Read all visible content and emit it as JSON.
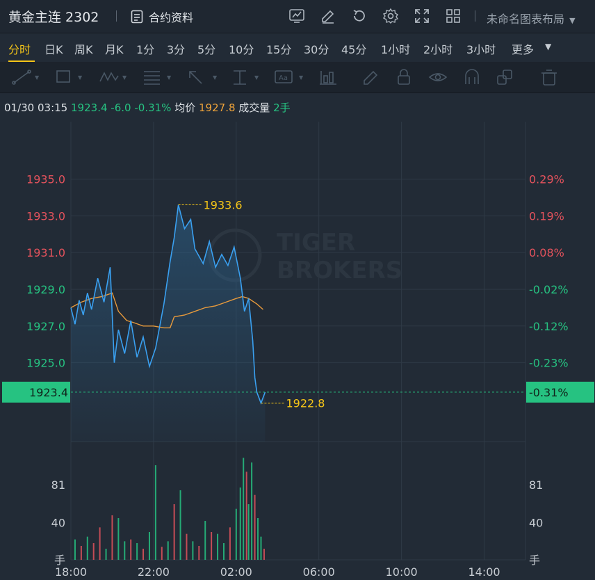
{
  "header": {
    "title": "黄金主连 2302",
    "contract_info_label": "合约资料",
    "layout_name": "未命名图表布局"
  },
  "periods": [
    "分时",
    "日K",
    "周K",
    "月K",
    "1分",
    "3分",
    "5分",
    "10分",
    "15分",
    "30分",
    "45分",
    "1小时",
    "2小时",
    "3小时",
    "更多"
  ],
  "active_period": "分时",
  "info": {
    "datetime": "01/30 03:15",
    "price": "1923.4",
    "change": "-6.0",
    "change_pct": "-0.31%",
    "avg_label": "均价",
    "avg_value": "1927.8",
    "volume_label": "成交量",
    "volume_value": "2手"
  },
  "colors": {
    "up": "#e2525c",
    "down": "#26c281",
    "price_line": "#3aa0f0",
    "avg_line": "#e89a3c",
    "annotation": "#f5c518"
  },
  "watermark": [
    "TIGER",
    "BROKERS"
  ],
  "chart_data": {
    "type": "line",
    "x_ticks": [
      "18:00",
      "22:00",
      "02:00",
      "06:00",
      "10:00",
      "14:00"
    ],
    "y_left_ticks": [
      "1935.0",
      "1933.0",
      "1931.0",
      "1929.0",
      "1927.0",
      "1925.0"
    ],
    "y_right_ticks": [
      "0.29%",
      "0.19%",
      "0.08%",
      "-0.02%",
      "-0.12%",
      "-0.23%"
    ],
    "last_price_tag": "1923.4",
    "last_pct_tag": "-0.31%",
    "ylim": [
      1922.6,
      1936.8
    ],
    "reference_close": 1929.4,
    "high_label": "1933.6",
    "low_label": "1922.8",
    "price_series": {
      "name": "price",
      "x": [
        18.0,
        18.2,
        18.4,
        18.6,
        18.8,
        19.0,
        19.3,
        19.6,
        19.9,
        20.1,
        20.3,
        20.6,
        20.9,
        21.2,
        21.5,
        21.8,
        22.1,
        22.5,
        22.8,
        23.0,
        23.2,
        23.5,
        23.8,
        24.0,
        24.4,
        24.7,
        25.0,
        25.3,
        25.6,
        25.9,
        26.2,
        26.4,
        26.6,
        26.8,
        26.9,
        27.0,
        27.2,
        27.4
      ],
      "values": [
        1928.0,
        1927.1,
        1928.4,
        1927.6,
        1928.8,
        1927.9,
        1929.6,
        1928.3,
        1930.2,
        1925.0,
        1926.8,
        1925.5,
        1927.3,
        1925.3,
        1926.4,
        1924.8,
        1925.8,
        1928.2,
        1930.5,
        1931.8,
        1933.6,
        1932.3,
        1932.8,
        1931.2,
        1930.4,
        1931.6,
        1930.2,
        1930.9,
        1930.3,
        1931.3,
        1929.6,
        1927.8,
        1928.5,
        1926.2,
        1924.2,
        1923.4,
        1922.8,
        1923.4
      ]
    },
    "avg_series": {
      "name": "均价",
      "x": [
        18.0,
        18.5,
        19.0,
        19.5,
        20.0,
        20.3,
        20.7,
        21.0,
        21.5,
        22.0,
        22.5,
        22.8,
        23.0,
        23.5,
        24.0,
        24.5,
        25.0,
        25.5,
        26.0,
        26.3,
        26.6,
        27.0,
        27.3
      ],
      "values": [
        1928.0,
        1928.3,
        1928.5,
        1928.6,
        1928.8,
        1927.8,
        1927.3,
        1927.2,
        1927.0,
        1927.0,
        1926.9,
        1926.9,
        1927.5,
        1927.6,
        1927.8,
        1928.0,
        1928.1,
        1928.3,
        1928.5,
        1928.6,
        1928.5,
        1928.2,
        1927.9
      ]
    },
    "volume": {
      "label": "手",
      "ticks": [
        "81",
        "40"
      ],
      "max": 120,
      "bars": [
        {
          "x": 18.2,
          "v": 22,
          "dir": "down"
        },
        {
          "x": 18.5,
          "v": 15,
          "dir": "up"
        },
        {
          "x": 18.8,
          "v": 25,
          "dir": "down"
        },
        {
          "x": 19.1,
          "v": 18,
          "dir": "up"
        },
        {
          "x": 19.4,
          "v": 35,
          "dir": "up"
        },
        {
          "x": 19.7,
          "v": 12,
          "dir": "down"
        },
        {
          "x": 20.0,
          "v": 48,
          "dir": "up"
        },
        {
          "x": 20.3,
          "v": 45,
          "dir": "down"
        },
        {
          "x": 20.6,
          "v": 20,
          "dir": "down"
        },
        {
          "x": 20.9,
          "v": 22,
          "dir": "up"
        },
        {
          "x": 21.2,
          "v": 18,
          "dir": "down"
        },
        {
          "x": 21.5,
          "v": 12,
          "dir": "up"
        },
        {
          "x": 21.8,
          "v": 30,
          "dir": "down"
        },
        {
          "x": 22.1,
          "v": 102,
          "dir": "down"
        },
        {
          "x": 22.4,
          "v": 14,
          "dir": "up"
        },
        {
          "x": 22.7,
          "v": 20,
          "dir": "down"
        },
        {
          "x": 23.0,
          "v": 60,
          "dir": "up"
        },
        {
          "x": 23.3,
          "v": 75,
          "dir": "down"
        },
        {
          "x": 23.6,
          "v": 28,
          "dir": "up"
        },
        {
          "x": 23.9,
          "v": 20,
          "dir": "down"
        },
        {
          "x": 24.2,
          "v": 15,
          "dir": "up"
        },
        {
          "x": 24.5,
          "v": 42,
          "dir": "down"
        },
        {
          "x": 24.8,
          "v": 30,
          "dir": "up"
        },
        {
          "x": 25.1,
          "v": 28,
          "dir": "down"
        },
        {
          "x": 25.4,
          "v": 18,
          "dir": "down"
        },
        {
          "x": 25.7,
          "v": 35,
          "dir": "up"
        },
        {
          "x": 26.0,
          "v": 55,
          "dir": "down"
        },
        {
          "x": 26.2,
          "v": 78,
          "dir": "down"
        },
        {
          "x": 26.35,
          "v": 110,
          "dir": "down"
        },
        {
          "x": 26.5,
          "v": 95,
          "dir": "up"
        },
        {
          "x": 26.6,
          "v": 60,
          "dir": "down"
        },
        {
          "x": 26.75,
          "v": 105,
          "dir": "down"
        },
        {
          "x": 26.9,
          "v": 70,
          "dir": "up"
        },
        {
          "x": 27.05,
          "v": 45,
          "dir": "down"
        },
        {
          "x": 27.2,
          "v": 25,
          "dir": "down"
        },
        {
          "x": 27.35,
          "v": 12,
          "dir": "up"
        }
      ]
    }
  }
}
